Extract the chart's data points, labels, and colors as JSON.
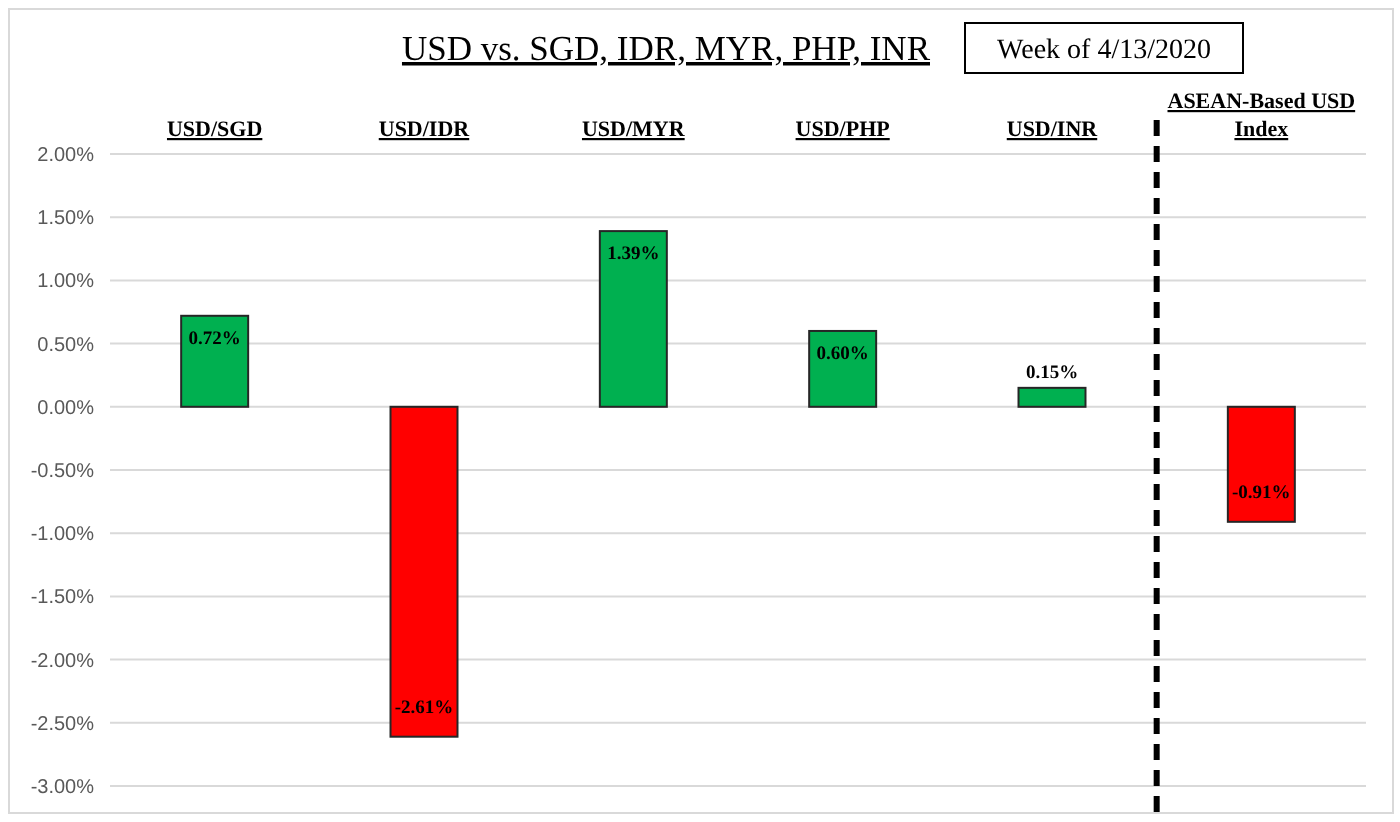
{
  "chart_data": {
    "type": "bar",
    "title": "USD vs. SGD, IDR, MYR, PHP, INR",
    "subtitle": "Week of 4/13/2020",
    "categories": [
      "USD/SGD",
      "USD/IDR",
      "USD/MYR",
      "USD/PHP",
      "USD/INR",
      "ASEAN-Based USD Index"
    ],
    "values": [
      0.72,
      -2.61,
      1.39,
      0.6,
      0.15,
      -0.91
    ],
    "colors": [
      "#00b050",
      "#ff0000",
      "#00b050",
      "#00b050",
      "#00b050",
      "#ff0000"
    ],
    "value_labels": [
      "0.72%",
      "-2.61%",
      "1.39%",
      "0.60%",
      "0.15%",
      "-0.91%"
    ],
    "ylim": [
      -3,
      2
    ],
    "yticks": [
      {
        "value": 2,
        "label": "2.00%"
      },
      {
        "value": 1.5,
        "label": "1.50%"
      },
      {
        "value": 1,
        "label": "1.00%"
      },
      {
        "value": 0.5,
        "label": "0.50%"
      },
      {
        "value": 0,
        "label": "0.00%"
      },
      {
        "value": -0.5,
        "label": "-0.50%"
      },
      {
        "value": -1,
        "label": "-1.00%"
      },
      {
        "value": -1.5,
        "label": "-1.50%"
      },
      {
        "value": -2,
        "label": "-2.00%"
      },
      {
        "value": -2.5,
        "label": "-2.50%"
      },
      {
        "value": -3,
        "label": "-3.00%"
      }
    ],
    "grid": "y"
  }
}
